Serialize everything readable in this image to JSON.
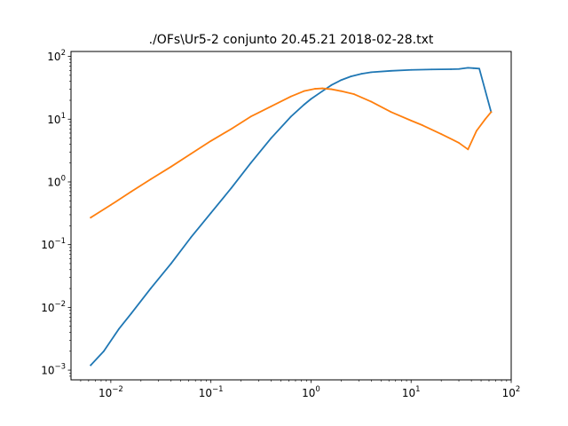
{
  "chart_data": {
    "type": "line",
    "title": "./OFs\\Ur5-2 conjunto   20.45.21 2018-02-28.txt",
    "xlabel": "",
    "ylabel": "",
    "xscale": "log",
    "yscale": "log",
    "xlim": [
      0.004,
      100
    ],
    "ylim": [
      0.0007,
      120
    ],
    "x_ticks": [
      {
        "value": 0.01,
        "base": "10",
        "exp": "−2"
      },
      {
        "value": 0.1,
        "base": "10",
        "exp": "−1"
      },
      {
        "value": 1,
        "base": "10",
        "exp": "0"
      },
      {
        "value": 10,
        "base": "10",
        "exp": "1"
      },
      {
        "value": 100,
        "base": "10",
        "exp": "2"
      }
    ],
    "y_ticks": [
      {
        "value": 0.001,
        "base": "10",
        "exp": "−3"
      },
      {
        "value": 0.01,
        "base": "10",
        "exp": "−2"
      },
      {
        "value": 0.1,
        "base": "10",
        "exp": "−1"
      },
      {
        "value": 1,
        "base": "10",
        "exp": "0"
      },
      {
        "value": 10,
        "base": "10",
        "exp": "1"
      },
      {
        "value": 100,
        "base": "10",
        "exp": "2"
      }
    ],
    "grid": false,
    "legend": "none",
    "series": [
      {
        "name": "series-1",
        "color": "#1f77b4",
        "points": [
          [
            0.0063,
            0.0012
          ],
          [
            0.0085,
            0.002
          ],
          [
            0.012,
            0.0045
          ],
          [
            0.016,
            0.008
          ],
          [
            0.025,
            0.02
          ],
          [
            0.04,
            0.05
          ],
          [
            0.063,
            0.13
          ],
          [
            0.1,
            0.32
          ],
          [
            0.16,
            0.8
          ],
          [
            0.25,
            2.0
          ],
          [
            0.4,
            5.0
          ],
          [
            0.63,
            11
          ],
          [
            0.85,
            17
          ],
          [
            1.0,
            21
          ],
          [
            1.3,
            28
          ],
          [
            1.6,
            35
          ],
          [
            2.0,
            42
          ],
          [
            2.5,
            48
          ],
          [
            3.2,
            53
          ],
          [
            4.0,
            56
          ],
          [
            6.3,
            59
          ],
          [
            10,
            61
          ],
          [
            16,
            62
          ],
          [
            25,
            62.5
          ],
          [
            30,
            63
          ],
          [
            37,
            66
          ],
          [
            42,
            65
          ],
          [
            48,
            64
          ],
          [
            63,
            13
          ]
        ]
      },
      {
        "name": "series-2",
        "color": "#ff7f0e",
        "points": [
          [
            0.0063,
            0.27
          ],
          [
            0.01,
            0.43
          ],
          [
            0.016,
            0.7
          ],
          [
            0.025,
            1.1
          ],
          [
            0.04,
            1.75
          ],
          [
            0.063,
            2.8
          ],
          [
            0.1,
            4.5
          ],
          [
            0.16,
            7.0
          ],
          [
            0.25,
            11
          ],
          [
            0.4,
            16
          ],
          [
            0.63,
            23
          ],
          [
            0.85,
            28
          ],
          [
            1.1,
            30.5
          ],
          [
            1.3,
            31
          ],
          [
            1.6,
            30
          ],
          [
            2.0,
            28
          ],
          [
            2.7,
            25
          ],
          [
            4.0,
            19
          ],
          [
            6.3,
            13
          ],
          [
            10,
            9.5
          ],
          [
            13,
            8
          ],
          [
            20,
            5.8
          ],
          [
            30,
            4.2
          ],
          [
            37,
            3.3
          ],
          [
            45,
            6.5
          ],
          [
            55,
            10
          ],
          [
            63,
            13
          ]
        ]
      }
    ]
  }
}
